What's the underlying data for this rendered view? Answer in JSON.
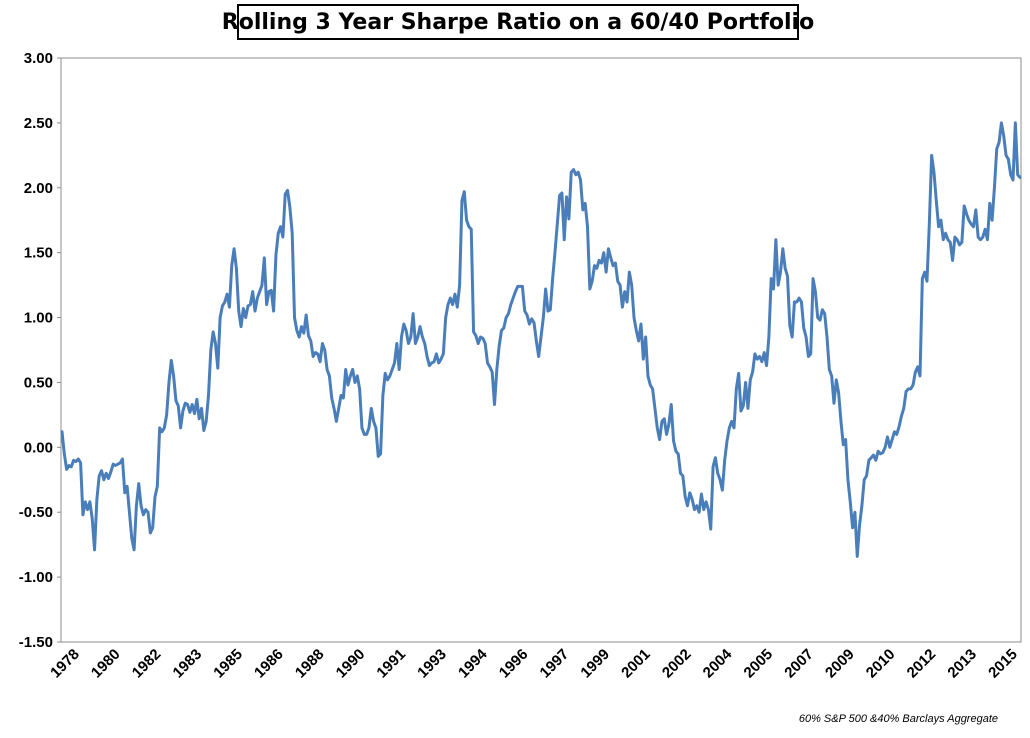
{
  "chart_data": {
    "type": "line",
    "title": "Rolling 3 Year Sharpe Ratio on a 60/40 Portfolio",
    "xlabel": "",
    "ylabel": "",
    "ylim": [
      -1.5,
      3.0
    ],
    "y_ticks": [
      "3.00",
      "2.50",
      "2.00",
      "1.50",
      "1.00",
      "0.50",
      "0.00",
      "-0.50",
      "-1.00",
      "-1.50"
    ],
    "x_ticks": [
      "1978",
      "1980",
      "1982",
      "1983",
      "1985",
      "1986",
      "1988",
      "1990",
      "1991",
      "1993",
      "1994",
      "1996",
      "1997",
      "1999",
      "2001",
      "2002",
      "2004",
      "2005",
      "2007",
      "2009",
      "2010",
      "2012",
      "2013",
      "2015"
    ],
    "grid": false,
    "legend": "none",
    "color": "#4a7ebb",
    "annotation": "60% S&P 500 &40% Barclays Aggregate",
    "series": [
      {
        "values": [
          0.12,
          -0.05,
          -0.17,
          -0.14,
          -0.15,
          -0.1,
          -0.11,
          -0.09,
          -0.12,
          -0.52,
          -0.42,
          -0.48,
          -0.42,
          -0.55,
          -0.79,
          -0.4,
          -0.22,
          -0.18,
          -0.25,
          -0.2,
          -0.24,
          -0.19,
          -0.13,
          -0.14,
          -0.13,
          -0.12,
          -0.09,
          -0.35,
          -0.3,
          -0.5,
          -0.7,
          -0.79,
          -0.45,
          -0.28,
          -0.45,
          -0.52,
          -0.48,
          -0.5,
          -0.66,
          -0.62,
          -0.38,
          -0.3,
          0.15,
          0.12,
          0.15,
          0.25,
          0.5,
          0.67,
          0.55,
          0.36,
          0.32,
          0.15,
          0.28,
          0.34,
          0.33,
          0.27,
          0.33,
          0.26,
          0.37,
          0.22,
          0.3,
          0.13,
          0.2,
          0.4,
          0.75,
          0.89,
          0.8,
          0.61,
          1.0,
          1.09,
          1.12,
          1.18,
          1.08,
          1.4,
          1.53,
          1.38,
          1.05,
          0.93,
          1.07,
          1.0,
          1.09,
          1.1,
          1.2,
          1.05,
          1.15,
          1.2,
          1.25,
          1.46,
          1.1,
          1.2,
          1.21,
          1.05,
          1.48,
          1.65,
          1.7,
          1.62,
          1.95,
          1.98,
          1.85,
          1.65,
          1.0,
          0.9,
          0.85,
          0.93,
          0.88,
          1.02,
          0.86,
          0.82,
          0.7,
          0.73,
          0.72,
          0.66,
          0.8,
          0.75,
          0.6,
          0.55,
          0.38,
          0.3,
          0.2,
          0.3,
          0.4,
          0.38,
          0.6,
          0.48,
          0.55,
          0.6,
          0.5,
          0.55,
          0.45,
          0.15,
          0.1,
          0.1,
          0.15,
          0.3,
          0.2,
          0.15,
          -0.07,
          -0.05,
          0.4,
          0.57,
          0.52,
          0.55,
          0.6,
          0.65,
          0.8,
          0.6,
          0.85,
          0.95,
          0.9,
          0.8,
          0.85,
          1.03,
          0.8,
          0.85,
          0.93,
          0.85,
          0.8,
          0.7,
          0.63,
          0.65,
          0.66,
          0.72,
          0.65,
          0.68,
          0.72,
          1.0,
          1.1,
          1.15,
          1.1,
          1.18,
          1.08,
          1.25,
          1.9,
          1.97,
          1.75,
          1.7,
          1.68,
          0.89,
          0.86,
          0.8,
          0.85,
          0.84,
          0.8,
          0.65,
          0.62,
          0.58,
          0.33,
          0.6,
          0.78,
          0.9,
          0.92,
          1.0,
          1.03,
          1.1,
          1.15,
          1.2,
          1.24,
          1.24,
          1.24,
          1.05,
          1.02,
          0.95,
          0.99,
          0.96,
          0.82,
          0.7,
          0.85,
          1.0,
          1.22,
          1.05,
          1.06,
          1.3,
          1.5,
          1.72,
          1.94,
          1.96,
          1.6,
          1.93,
          1.76,
          2.12,
          2.14,
          2.1,
          2.12,
          2.06,
          1.83,
          1.88,
          1.7,
          1.22,
          1.28,
          1.4,
          1.38,
          1.44,
          1.42,
          1.5,
          1.35,
          1.53,
          1.46,
          1.4,
          1.42,
          1.28,
          1.25,
          1.08,
          1.2,
          1.12,
          1.35,
          1.25,
          1.0,
          0.9,
          0.82,
          0.95,
          0.68,
          0.85,
          0.55,
          0.48,
          0.45,
          0.3,
          0.15,
          0.06,
          0.2,
          0.22,
          0.1,
          0.18,
          0.33,
          0.05,
          -0.03,
          -0.05,
          -0.2,
          -0.22,
          -0.38,
          -0.45,
          -0.35,
          -0.4,
          -0.48,
          -0.45,
          -0.5,
          -0.36,
          -0.48,
          -0.42,
          -0.48,
          -0.63,
          -0.15,
          -0.08,
          -0.2,
          -0.25,
          -0.33,
          -0.1,
          0.05,
          0.15,
          0.2,
          0.15,
          0.45,
          0.57,
          0.28,
          0.32,
          0.5,
          0.3,
          0.52,
          0.58,
          0.72,
          0.68,
          0.7,
          0.66,
          0.73,
          0.63,
          0.85,
          1.3,
          1.22,
          1.6,
          1.25,
          1.35,
          1.53,
          1.38,
          1.32,
          0.94,
          0.85,
          1.12,
          1.12,
          1.15,
          1.12,
          0.92,
          0.85,
          0.7,
          0.72,
          1.3,
          1.2,
          1.0,
          0.98,
          1.06,
          1.03,
          0.85,
          0.6,
          0.55,
          0.34,
          0.52,
          0.42,
          0.2,
          0.02,
          0.06,
          -0.25,
          -0.42,
          -0.62,
          -0.5,
          -0.84,
          -0.6,
          -0.45,
          -0.25,
          -0.22,
          -0.1,
          -0.08,
          -0.06,
          -0.1,
          -0.03,
          -0.05,
          -0.04,
          0.0,
          0.08,
          0.0,
          0.06,
          0.12,
          0.1,
          0.16,
          0.24,
          0.3,
          0.43,
          0.45,
          0.45,
          0.48,
          0.58,
          0.62,
          0.55,
          1.3,
          1.35,
          1.28,
          1.72,
          2.25,
          2.12,
          1.9,
          1.7,
          1.75,
          1.6,
          1.65,
          1.6,
          1.58,
          1.44,
          1.62,
          1.6,
          1.56,
          1.58,
          1.86,
          1.8,
          1.75,
          1.72,
          1.7,
          1.83,
          1.62,
          1.6,
          1.62,
          1.68,
          1.6,
          1.88,
          1.75,
          2.0,
          2.3,
          2.35,
          2.5,
          2.4,
          2.25,
          2.22,
          2.1,
          2.06,
          2.5,
          2.1,
          2.08
        ]
      }
    ]
  }
}
